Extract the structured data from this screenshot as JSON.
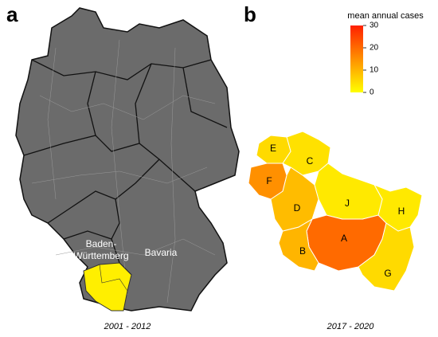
{
  "panel_a": {
    "letter": "a",
    "caption": "2001 - 2012",
    "labels": {
      "baden_wuerttemberg": [
        "Baden-",
        "Württemberg"
      ],
      "bavaria": "Bavaria"
    }
  },
  "panel_b": {
    "letter": "b",
    "caption": "2017 - 2020",
    "legend": {
      "title": "mean annual cases",
      "lim": [
        0,
        30
      ],
      "ticks": [
        0,
        10,
        20,
        30
      ],
      "color_low": "#ffff00",
      "color_high": "#ff2000"
    },
    "regions": [
      {
        "label": "A",
        "value": 20
      },
      {
        "label": "B",
        "value": 10
      },
      {
        "label": "C",
        "value": 4
      },
      {
        "label": "D",
        "value": 9
      },
      {
        "label": "E",
        "value": 5
      },
      {
        "label": "F",
        "value": 15
      },
      {
        "label": "G",
        "value": 5
      },
      {
        "label": "H",
        "value": 3
      },
      {
        "label": "J",
        "value": 3
      }
    ]
  }
}
